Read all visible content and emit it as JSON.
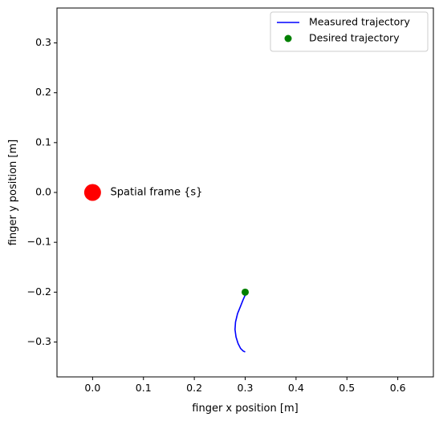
{
  "chart_data": {
    "type": "line",
    "title": "",
    "xlabel": "finger x position [m]",
    "ylabel": "finger y position [m]",
    "xlim": [
      -0.07,
      0.67
    ],
    "ylim": [
      -0.37,
      0.37
    ],
    "xticks": [
      0.0,
      0.1,
      0.2,
      0.3,
      0.4,
      0.5,
      0.6
    ],
    "xtick_labels": [
      "0.0",
      "0.1",
      "0.2",
      "0.3",
      "0.4",
      "0.5",
      "0.6"
    ],
    "yticks": [
      -0.3,
      -0.2,
      -0.1,
      0.0,
      0.1,
      0.2,
      0.3
    ],
    "ytick_labels": [
      "−0.3",
      "−0.2",
      "−0.1",
      "0.0",
      "0.1",
      "0.2",
      "0.3"
    ],
    "grid": false,
    "legend_position": "top-right",
    "colors": {
      "measured": "#0000ff",
      "desired": "#008000",
      "origin": "#ff0000"
    },
    "series": [
      {
        "name": "Measured trajectory",
        "kind": "line",
        "x": [
          0.3,
          0.296,
          0.291,
          0.286,
          0.282,
          0.28,
          0.281,
          0.285,
          0.291,
          0.296,
          0.3,
          0.302
        ],
        "y": [
          -0.32,
          -0.318,
          -0.313,
          -0.303,
          -0.29,
          -0.275,
          -0.26,
          -0.243,
          -0.228,
          -0.215,
          -0.206,
          -0.2
        ]
      },
      {
        "name": "Desired trajectory",
        "kind": "scatter",
        "x": [
          0.3
        ],
        "y": [
          -0.2
        ]
      }
    ],
    "origin_marker": {
      "x": 0.0,
      "y": 0.0
    },
    "annotations": [
      {
        "text": "Spatial frame {s}",
        "x": 0.035,
        "y": 0.0
      }
    ]
  }
}
